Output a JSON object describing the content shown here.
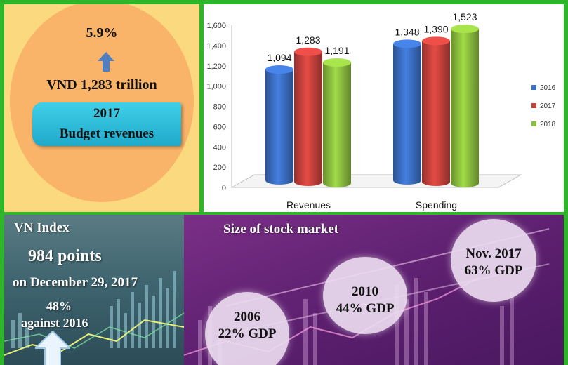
{
  "revenue_box": {
    "growth": "5.9%",
    "amount": "VND 1,283 trillion",
    "year": "2017",
    "label": "Budget revenues"
  },
  "chart_data": {
    "type": "bar",
    "categories": [
      "Revenues",
      "Spending"
    ],
    "series": [
      {
        "name": "2016",
        "values": [
          1094,
          1348
        ],
        "color": "#3b6fc4"
      },
      {
        "name": "2017",
        "values": [
          1283,
          1390
        ],
        "color": "#c8413c"
      },
      {
        "name": "2018",
        "values": [
          1191,
          1523
        ],
        "color": "#8cbf3f"
      }
    ],
    "data_labels": [
      [
        "1,094",
        "1,283",
        "1,191"
      ],
      [
        "1,348",
        "1,390",
        "1,523"
      ]
    ],
    "y_ticks": [
      "0",
      "200",
      "400",
      "600",
      "800",
      "1,000",
      "1,200",
      "1,400",
      "1,600"
    ],
    "ylim": [
      0,
      1600
    ],
    "legend_position": "right",
    "style": "3d-cylinder"
  },
  "vn_index": {
    "title": "VN Index",
    "points": "984 points",
    "date": "on December 29, 2017",
    "change_pct": "48%",
    "change_label": "against 2016"
  },
  "stock_market": {
    "title": "Size of stock market",
    "bubbles": [
      {
        "year": "2006",
        "value": "22% GDP"
      },
      {
        "year": "2010",
        "value": "44% GDP"
      },
      {
        "year": "Nov. 2017",
        "value": "63% GDP"
      }
    ]
  }
}
